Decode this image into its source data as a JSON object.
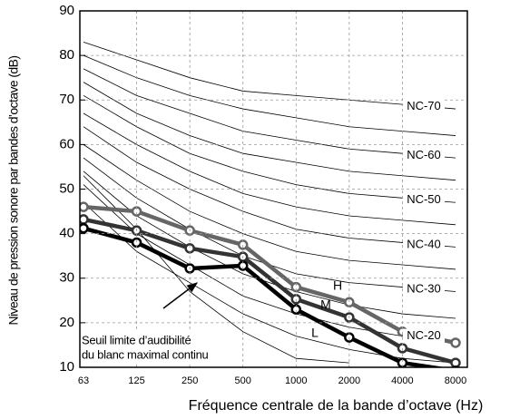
{
  "chart_data": {
    "type": "line",
    "x_label": "Fréquence centrale de la bande d’octave (Hz)",
    "y_label": "Niveau de pression sonore par bandes d’octave (dB)",
    "categories": [
      "63",
      "125",
      "250",
      "500",
      "1000",
      "2000",
      "4000",
      "8000"
    ],
    "ylim": [
      10,
      90
    ],
    "yticks": [
      10,
      20,
      30,
      40,
      50,
      60,
      70,
      80,
      90
    ],
    "grid": true,
    "series": [
      {
        "name": "H",
        "color": "#666666",
        "values": [
          46,
          45,
          40.7,
          37.5,
          28,
          24.6,
          18,
          15.5
        ]
      },
      {
        "name": "M",
        "color": "#333333",
        "values": [
          43.2,
          40.7,
          36.7,
          34.8,
          25.3,
          21.2,
          14.3,
          11
        ]
      },
      {
        "name": "L",
        "color": "#000000",
        "values": [
          41.2,
          38,
          32.2,
          32.8,
          23,
          16.7,
          11,
          9.2
        ]
      }
    ],
    "nc_curves": [
      {
        "values": [
          47,
          36,
          29,
          22,
          17,
          14,
          12,
          11
        ]
      },
      {
        "label": "NC-20",
        "values": [
          51,
          40,
          33,
          26,
          22,
          19,
          17,
          16
        ]
      },
      {
        "values": [
          54,
          44,
          37,
          31,
          27,
          24,
          22,
          21
        ]
      },
      {
        "label": "NC-30",
        "values": [
          57,
          48,
          41,
          35,
          31,
          29,
          28,
          27
        ]
      },
      {
        "values": [
          60,
          52,
          45,
          40,
          36,
          34,
          33,
          32
        ]
      },
      {
        "label": "NC-40",
        "values": [
          64,
          56,
          50,
          45,
          41,
          39,
          38,
          37
        ]
      },
      {
        "values": [
          67,
          60,
          54,
          49,
          46,
          44,
          43,
          42
        ]
      },
      {
        "label": "NC-50",
        "values": [
          71,
          64,
          58,
          54,
          51,
          49,
          48,
          47
        ]
      },
      {
        "values": [
          74,
          67,
          62,
          58,
          56,
          54,
          53,
          52
        ]
      },
      {
        "label": "NC-60",
        "values": [
          77,
          71,
          67,
          63,
          61,
          59,
          58,
          57
        ]
      },
      {
        "values": [
          80,
          75,
          71,
          68,
          66,
          64,
          63,
          62
        ]
      },
      {
        "label": "NC-70",
        "values": [
          83,
          79,
          75,
          72,
          71,
          70,
          69,
          68
        ]
      }
    ],
    "threshold": {
      "annotation": [
        "Seuil  limite  d’audibilité",
        "du blanc maximal continu"
      ],
      "values": [
        53,
        41,
        27,
        18,
        12,
        11,
        null,
        null
      ]
    }
  }
}
